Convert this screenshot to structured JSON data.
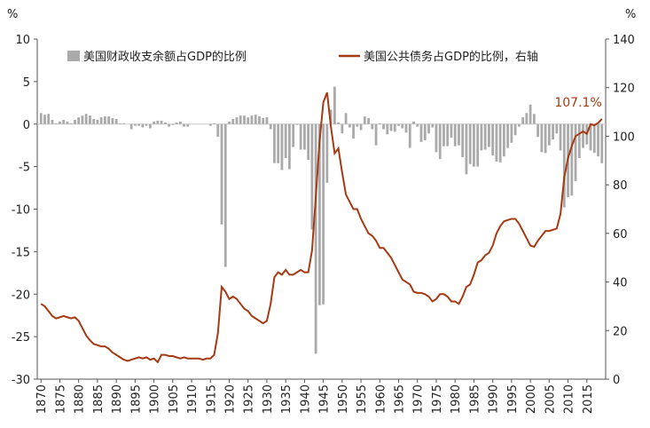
{
  "chart_data": {
    "type": "bar+line",
    "x": [
      1870,
      1871,
      1872,
      1873,
      1874,
      1875,
      1876,
      1877,
      1878,
      1879,
      1880,
      1881,
      1882,
      1883,
      1884,
      1885,
      1886,
      1887,
      1888,
      1889,
      1890,
      1891,
      1892,
      1893,
      1894,
      1895,
      1896,
      1897,
      1898,
      1899,
      1900,
      1901,
      1902,
      1903,
      1904,
      1905,
      1906,
      1907,
      1908,
      1909,
      1910,
      1911,
      1912,
      1913,
      1914,
      1915,
      1916,
      1917,
      1918,
      1919,
      1920,
      1921,
      1922,
      1923,
      1924,
      1925,
      1926,
      1927,
      1928,
      1929,
      1930,
      1931,
      1932,
      1933,
      1934,
      1935,
      1936,
      1937,
      1938,
      1939,
      1940,
      1941,
      1942,
      1943,
      1944,
      1945,
      1946,
      1947,
      1948,
      1949,
      1950,
      1951,
      1952,
      1953,
      1954,
      1955,
      1956,
      1957,
      1958,
      1959,
      1960,
      1961,
      1962,
      1963,
      1964,
      1965,
      1966,
      1967,
      1968,
      1969,
      1970,
      1971,
      1972,
      1973,
      1974,
      1975,
      1976,
      1977,
      1978,
      1979,
      1980,
      1981,
      1982,
      1983,
      1984,
      1985,
      1986,
      1987,
      1988,
      1989,
      1990,
      1991,
      1992,
      1993,
      1994,
      1995,
      1996,
      1997,
      1998,
      1999,
      2000,
      2001,
      2002,
      2003,
      2004,
      2005,
      2006,
      2007,
      2008,
      2009,
      2010,
      2011,
      2012,
      2013,
      2014,
      2015,
      2016,
      2017,
      2018,
      2019
    ],
    "series": [
      {
        "name": "美国财政收支余额占GDP的比例",
        "type": "bar",
        "color": "#aaaaaa",
        "axis": "y",
        "values": [
          1.3,
          1.1,
          1.2,
          0.5,
          0.1,
          0.3,
          0.5,
          0.3,
          0.1,
          0.5,
          0.8,
          1.0,
          1.2,
          1.0,
          0.6,
          0.5,
          0.8,
          0.9,
          0.9,
          0.7,
          0.6,
          0.1,
          0.1,
          0,
          -0.6,
          -0.2,
          -0.2,
          -0.4,
          -0.2,
          -0.5,
          0.3,
          0.4,
          0.4,
          0.2,
          -0.3,
          -0.1,
          0.2,
          0.3,
          -0.3,
          -0.3,
          0,
          0,
          0,
          0,
          0,
          -0.2,
          0.1,
          -1.5,
          -11.8,
          -16.8,
          0.3,
          0.6,
          0.8,
          1.0,
          1.0,
          0.8,
          1.0,
          1.1,
          0.9,
          0.7,
          0.8,
          -0.6,
          -4.6,
          -4.6,
          -5.4,
          -4,
          -5.3,
          -2.7,
          -0.1,
          -3,
          -3,
          -4.2,
          -12.4,
          -27,
          -21.3,
          -21.2,
          -6.9,
          1.7,
          4.4,
          0.2,
          -1.1,
          1.3,
          -0.4,
          -1.7,
          -0.3,
          -0.7,
          0.9,
          0.7,
          -0.6,
          -2.5,
          0.1,
          -0.6,
          -1.2,
          -0.8,
          -0.9,
          -0.2,
          -0.5,
          -1.0,
          -2.8,
          0.3,
          -0.3,
          -2.1,
          -1.9,
          -1.1,
          -0.4,
          -3.3,
          -4.1,
          -2.6,
          -2.6,
          -1.6,
          -2.6,
          -2.5,
          -3.9,
          -5.9,
          -4.7,
          -5.0,
          -5.0,
          -3.1,
          -3.0,
          -2.7,
          -3.7,
          -4.4,
          -4.5,
          -3.8,
          -2.8,
          -2.2,
          -1.3,
          -0.3,
          0.8,
          1.3,
          2.3,
          1.2,
          -1.5,
          -3.3,
          -3.4,
          -2.5,
          -1.8,
          -1.1,
          -3.1,
          -9.8,
          -8.6,
          -8.4,
          -6.7,
          -4.0,
          -2.8,
          -2.4,
          -3.1,
          -3.4,
          -3.8,
          -4.6
        ]
      },
      {
        "name": "美国公共债务占GDP的比例，右轴",
        "type": "line",
        "color": "#a63a12",
        "axis": "y2",
        "values": [
          31,
          30,
          28,
          26,
          25,
          25.5,
          26,
          25.5,
          25,
          25.5,
          24,
          21,
          18,
          16,
          14.5,
          14,
          13.5,
          13.5,
          12.5,
          11,
          10,
          9,
          8,
          7.5,
          8,
          8.5,
          9,
          8.5,
          9,
          8,
          8.5,
          7,
          10,
          10,
          9.5,
          9.5,
          9,
          8.5,
          9,
          8.5,
          8.5,
          8.5,
          8.5,
          8,
          8.5,
          8.5,
          10,
          19,
          38,
          36,
          33,
          34,
          33,
          31,
          29,
          28,
          26,
          25,
          24,
          23,
          24,
          31,
          42,
          44,
          43,
          45,
          43,
          43,
          44,
          45,
          44,
          44,
          53,
          75,
          98,
          114,
          118,
          104,
          93,
          95,
          85,
          76,
          73,
          70,
          70,
          66,
          63,
          60,
          59,
          57,
          54,
          54,
          52,
          50,
          47,
          44,
          41,
          40,
          39,
          36,
          35.5,
          35.5,
          35,
          34,
          32,
          33,
          35,
          35,
          34,
          32,
          32,
          31,
          34,
          38,
          39,
          43,
          48,
          49,
          51,
          52,
          55,
          60,
          63,
          65,
          65.5,
          66,
          66,
          64,
          61,
          58,
          55,
          54.5,
          57,
          59,
          61,
          61,
          61.5,
          62,
          68,
          83,
          91,
          96,
          100,
          101,
          102,
          101,
          105,
          104.5,
          105.5,
          107.1
        ],
        "value_labels": [
          null,
          null,
          null,
          null,
          null,
          null,
          null,
          null,
          null,
          null,
          null,
          null,
          null,
          null,
          null,
          null,
          null,
          null,
          null,
          null,
          null,
          null,
          null,
          null,
          null,
          null,
          null,
          null,
          null,
          null,
          null,
          null,
          null,
          null,
          null,
          null,
          null,
          null,
          null,
          null,
          null,
          null,
          null,
          null,
          null,
          null,
          null,
          null,
          null,
          null,
          null,
          null,
          null,
          null,
          null,
          null,
          null,
          null,
          null,
          null,
          null,
          null,
          null,
          null,
          null,
          null,
          null,
          null,
          null,
          null,
          null,
          null,
          null,
          null,
          null,
          null,
          null,
          null,
          null,
          null,
          null,
          null,
          null,
          null,
          null,
          null,
          null,
          null,
          null,
          null,
          null,
          null,
          null,
          null,
          null,
          null,
          null,
          null,
          null,
          null,
          null,
          null,
          null,
          null,
          null,
          null,
          null,
          null,
          null,
          null,
          null,
          null,
          null,
          null,
          null,
          null,
          null,
          null,
          null,
          null,
          null,
          null,
          null,
          null,
          null,
          null,
          null,
          null,
          null,
          null,
          null,
          null,
          null,
          null,
          null,
          null,
          null,
          null,
          null,
          null,
          null,
          null,
          null,
          null,
          null,
          null,
          null,
          null,
          null,
          "107.1%"
        ]
      }
    ],
    "y_unit": "%",
    "y2_unit": "%",
    "xlim": [
      1869,
      2020
    ],
    "xticks": [
      1870,
      1875,
      1880,
      1885,
      1890,
      1895,
      1900,
      1905,
      1910,
      1915,
      1920,
      1925,
      1930,
      1935,
      1940,
      1945,
      1950,
      1955,
      1960,
      1965,
      1970,
      1975,
      1980,
      1985,
      1990,
      1995,
      2000,
      2005,
      2010,
      2015
    ],
    "ylim": [
      -30,
      10
    ],
    "yticks": [
      -30,
      -25,
      -20,
      -15,
      -10,
      -5,
      0,
      5,
      10
    ],
    "y2lim": [
      0,
      140
    ],
    "y2ticks": [
      0,
      20,
      40,
      60,
      80,
      100,
      120,
      140
    ]
  }
}
